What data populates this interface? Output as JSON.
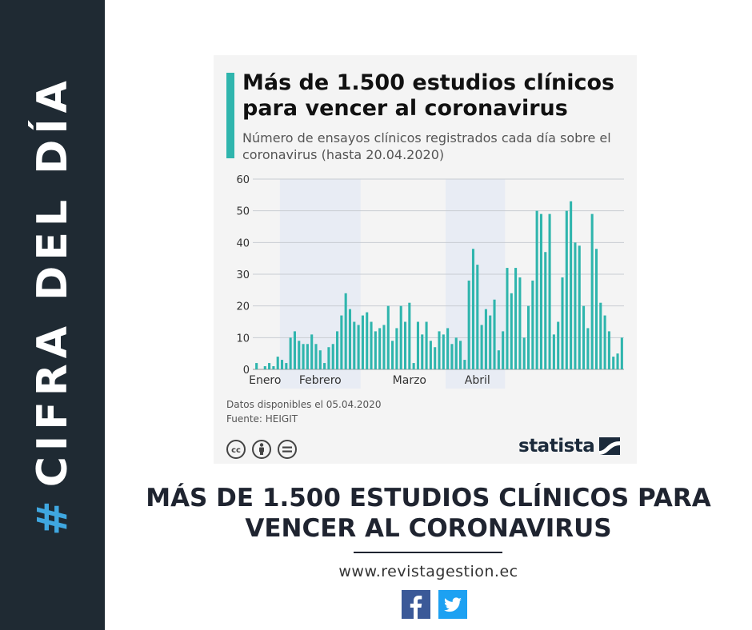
{
  "sidebar": {
    "hash": "#",
    "label": "CIFRA DEL DÍA",
    "hash_color": "#3fa7e0",
    "background": "#1f2a33"
  },
  "card": {
    "title": "Más de 1.500 estudios clínicos para vencer al coronavirus",
    "subtitle": "Número de ensayos clínicos registrados cada día sobre el coronavirus (hasta 20.04.2020)",
    "note_data": "Datos disponibles el 05.04.2020",
    "note_source": "Fuente: HEIGIT",
    "license_icons": [
      "cc-icon",
      "person-icon",
      "equals-icon"
    ],
    "logo_text": "statista",
    "accent_color": "#2fb5ad"
  },
  "chart_data": {
    "type": "bar",
    "title": "Más de 1.500 estudios clínicos para vencer al coronavirus",
    "subtitle": "Número de ensayos clínicos registrados cada día sobre el coronavirus (hasta 20.04.2020)",
    "color": "#2fb5ad",
    "ylim": [
      0,
      60
    ],
    "yticks": [
      0,
      10,
      20,
      30,
      40,
      50,
      60
    ],
    "grid": true,
    "month_labels": [
      {
        "label": "Enero",
        "at_index": 2
      },
      {
        "label": "Febrero",
        "at_index": 15
      },
      {
        "label": "Marzo",
        "at_index": 36
      },
      {
        "label": "Abril",
        "at_index": 52
      }
    ],
    "shaded_bands": [
      {
        "from_index": 6,
        "to_index": 24
      },
      {
        "from_index": 45,
        "to_index": 58
      }
    ],
    "values": [
      2,
      0,
      1,
      2,
      1,
      4,
      3,
      2,
      10,
      12,
      9,
      8,
      8,
      11,
      8,
      6,
      2,
      7,
      8,
      12,
      17,
      24,
      19,
      15,
      14,
      17,
      18,
      15,
      12,
      13,
      14,
      20,
      9,
      13,
      20,
      15,
      21,
      2,
      15,
      11,
      15,
      9,
      7,
      12,
      11,
      13,
      8,
      10,
      9,
      3,
      28,
      38,
      33,
      14,
      19,
      17,
      22,
      6,
      12,
      32,
      24,
      32,
      29,
      10,
      20,
      28,
      50,
      49,
      37,
      49,
      11,
      15,
      29,
      50,
      53,
      40,
      39,
      20,
      13,
      49,
      38,
      21,
      17,
      12,
      4,
      5,
      10
    ]
  },
  "headline": "MÁS DE 1.500 ESTUDIOS CLÍNICOS PARA VENCER AL CORONAVIRUS",
  "website": "www.revistagestion.ec",
  "social": [
    "facebook-icon",
    "twitter-icon"
  ],
  "colors": {
    "facebook": "#3b5998",
    "twitter": "#1da1f2"
  }
}
